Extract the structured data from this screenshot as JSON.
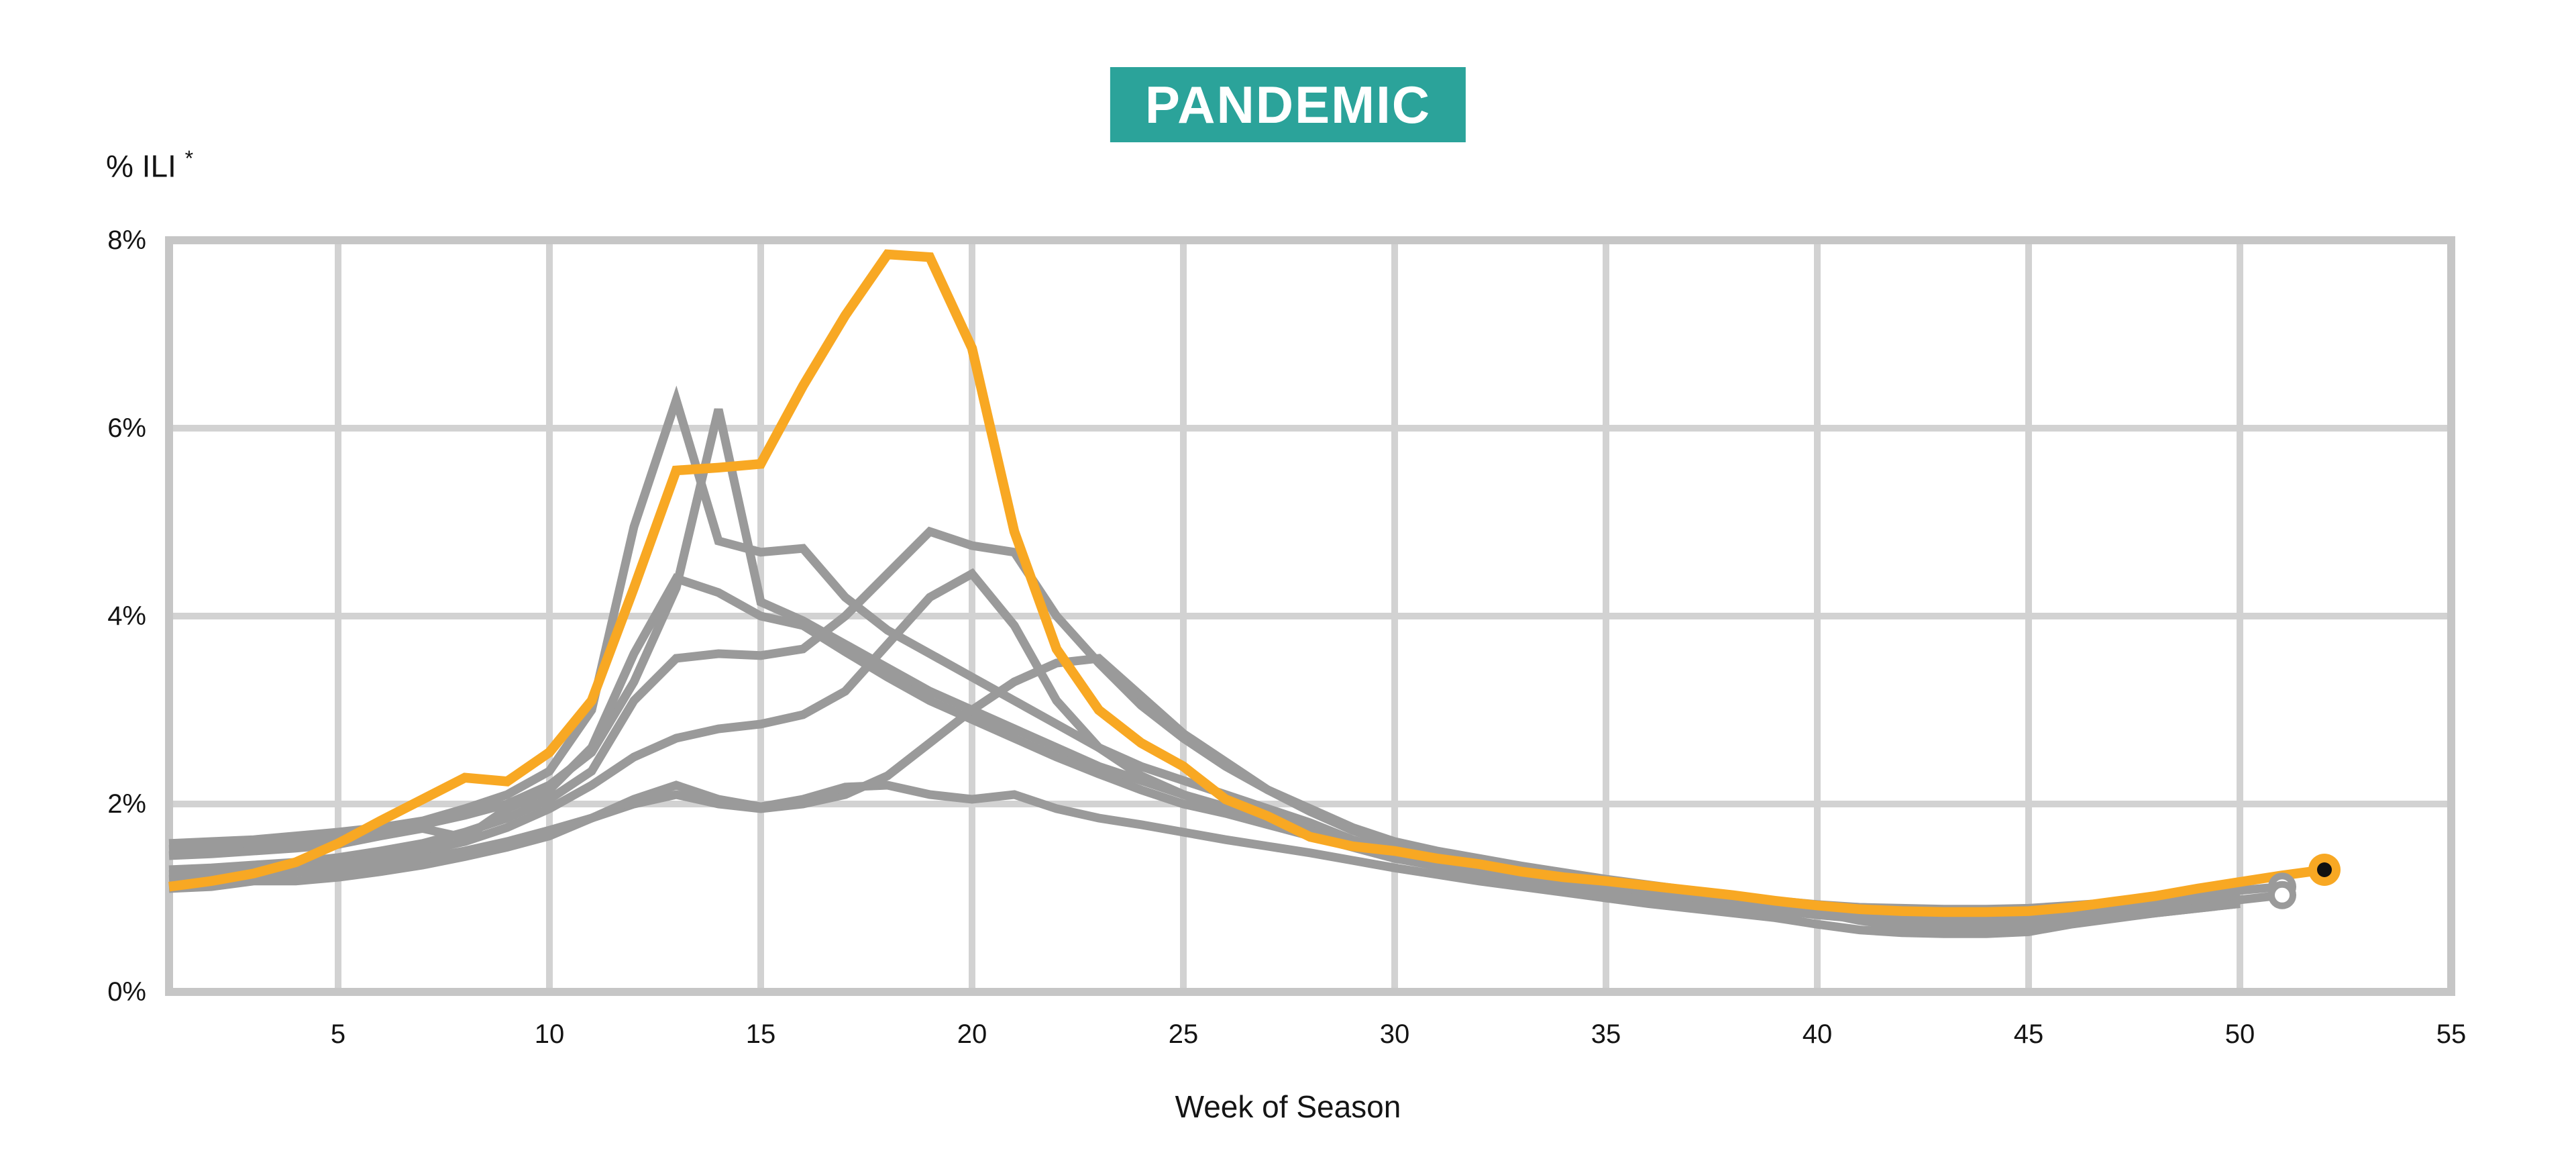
{
  "badge": {
    "label": "PANDEMIC",
    "bg_color": "#2BA39A",
    "text_color": "#ffffff"
  },
  "y_axis": {
    "label": "% ILI",
    "label_suffix": "*",
    "ticks": [
      {
        "value": 0,
        "label": "0%"
      },
      {
        "value": 2,
        "label": "2%"
      },
      {
        "value": 4,
        "label": "4%"
      },
      {
        "value": 6,
        "label": "6%"
      },
      {
        "value": 8,
        "label": "8%"
      }
    ]
  },
  "x_axis": {
    "label": "Week of Season",
    "ticks": [
      {
        "value": 5,
        "label": "5"
      },
      {
        "value": 10,
        "label": "10"
      },
      {
        "value": 15,
        "label": "15"
      },
      {
        "value": 20,
        "label": "20"
      },
      {
        "value": 25,
        "label": "25"
      },
      {
        "value": 30,
        "label": "30"
      },
      {
        "value": 35,
        "label": "35"
      },
      {
        "value": 40,
        "label": "40"
      },
      {
        "value": 45,
        "label": "45"
      },
      {
        "value": 50,
        "label": "50"
      },
      {
        "value": 55,
        "label": "55"
      }
    ]
  },
  "colors": {
    "highlight": "#F8A823",
    "past_season": "#9A9A9A",
    "grid": "#D2D2D2",
    "frame": "#C6C6C6",
    "marker_core": "#111111",
    "text": "#141414"
  },
  "chart_data": {
    "type": "line",
    "title": "PANDEMIC",
    "xlabel": "Week of Season",
    "ylabel": "% ILI *",
    "xlim": [
      1,
      55
    ],
    "ylim": [
      0,
      8
    ],
    "grid": true,
    "legend": "none",
    "series": [
      {
        "name": "past-season-1",
        "role": "past-season",
        "start_week": 1,
        "end_marker": "open-circle",
        "values": [
          1.58,
          1.6,
          1.62,
          1.66,
          1.7,
          1.75,
          1.82,
          1.95,
          2.1,
          2.35,
          3.0,
          4.95,
          6.3,
          4.8,
          4.68,
          4.72,
          4.2,
          3.85,
          3.6,
          3.35,
          3.1,
          2.85,
          2.6,
          2.4,
          2.25,
          2.1,
          1.95,
          1.8,
          1.62,
          1.48,
          1.4,
          1.33,
          1.27,
          1.21,
          1.15,
          1.1,
          1.05,
          1.0,
          0.96,
          0.92,
          0.9,
          0.89,
          0.88,
          0.88,
          0.89,
          0.92,
          0.95,
          1.0,
          1.04,
          1.08,
          1.12
        ]
      },
      {
        "name": "past-season-2",
        "role": "past-season",
        "start_week": 1,
        "end_marker": null,
        "values": [
          1.52,
          1.54,
          1.57,
          1.6,
          1.64,
          1.7,
          1.78,
          1.88,
          2.0,
          2.2,
          2.55,
          3.3,
          4.3,
          6.2,
          4.15,
          3.95,
          3.7,
          3.45,
          3.2,
          3.0,
          2.8,
          2.6,
          2.4,
          2.25,
          2.1,
          1.97,
          1.85,
          1.72,
          1.58,
          1.44,
          1.36,
          1.3,
          1.24,
          1.18,
          1.12,
          1.07,
          1.02,
          0.98,
          0.94,
          0.9,
          0.88,
          0.87,
          0.86,
          0.86,
          0.87,
          0.89,
          0.92,
          0.95,
          0.99,
          1.03
        ]
      },
      {
        "name": "past-season-3",
        "role": "past-season",
        "start_week": 1,
        "end_marker": null,
        "values": [
          1.45,
          1.47,
          1.5,
          1.53,
          1.57,
          1.66,
          1.74,
          1.64,
          1.95,
          2.15,
          2.6,
          3.6,
          4.4,
          4.25,
          4.0,
          3.9,
          3.62,
          3.35,
          3.1,
          2.9,
          2.7,
          2.5,
          2.32,
          2.15,
          2.0,
          1.9,
          1.78,
          1.66,
          1.54,
          1.42,
          1.34,
          1.27,
          1.2,
          1.14,
          1.08,
          1.03,
          0.98,
          0.93,
          0.88,
          0.84,
          0.8,
          0.78,
          0.77,
          0.77,
          0.78,
          0.81,
          0.85,
          0.89,
          0.93,
          0.97
        ]
      },
      {
        "name": "past-season-4",
        "role": "past-season",
        "start_week": 1,
        "end_marker": null,
        "values": [
          1.3,
          1.32,
          1.35,
          1.38,
          1.43,
          1.5,
          1.58,
          1.7,
          1.85,
          2.05,
          2.35,
          3.1,
          3.55,
          3.6,
          3.58,
          3.65,
          4.0,
          4.45,
          4.9,
          4.75,
          4.68,
          4.0,
          3.5,
          3.05,
          2.7,
          2.4,
          2.15,
          1.95,
          1.75,
          1.6,
          1.5,
          1.42,
          1.34,
          1.27,
          1.2,
          1.14,
          1.08,
          1.02,
          0.97,
          0.93,
          0.9,
          0.88,
          0.87,
          0.87,
          0.88,
          0.9,
          0.93,
          0.96,
          0.99,
          1.02
        ]
      },
      {
        "name": "past-season-5",
        "role": "past-season",
        "start_week": 1,
        "end_marker": "open-circle",
        "values": [
          1.25,
          1.27,
          1.3,
          1.33,
          1.37,
          1.43,
          1.5,
          1.6,
          1.75,
          1.95,
          2.2,
          2.5,
          2.7,
          2.8,
          2.85,
          2.95,
          3.2,
          3.7,
          4.2,
          4.45,
          3.9,
          3.1,
          2.6,
          2.3,
          2.1,
          1.95,
          1.8,
          1.68,
          1.56,
          1.45,
          1.36,
          1.28,
          1.21,
          1.14,
          1.08,
          1.02,
          0.97,
          0.92,
          0.87,
          0.82,
          0.78,
          0.76,
          0.75,
          0.75,
          0.77,
          0.8,
          0.84,
          0.88,
          0.93,
          0.98,
          1.03
        ]
      },
      {
        "name": "past-season-6",
        "role": "past-season",
        "start_week": 1,
        "end_marker": null,
        "values": [
          1.2,
          1.22,
          1.24,
          1.27,
          1.31,
          1.36,
          1.42,
          1.5,
          1.6,
          1.72,
          1.85,
          2.0,
          2.1,
          2.0,
          1.95,
          2.0,
          2.1,
          2.3,
          2.65,
          3.0,
          3.3,
          3.5,
          3.55,
          3.15,
          2.75,
          2.45,
          2.15,
          1.92,
          1.72,
          1.56,
          1.45,
          1.36,
          1.28,
          1.2,
          1.13,
          1.07,
          1.01,
          0.95,
          0.9,
          0.85,
          0.76,
          0.7,
          0.68,
          0.67,
          0.69,
          0.74,
          0.79,
          0.84,
          0.89,
          0.94
        ]
      },
      {
        "name": "past-season-7",
        "role": "past-season",
        "start_week": 1,
        "end_marker": null,
        "values": [
          1.1,
          1.12,
          1.18,
          1.18,
          1.22,
          1.28,
          1.35,
          1.44,
          1.54,
          1.66,
          1.85,
          2.05,
          2.2,
          2.05,
          1.97,
          2.05,
          2.18,
          2.2,
          2.1,
          2.05,
          2.1,
          1.95,
          1.85,
          1.78,
          1.7,
          1.62,
          1.55,
          1.48,
          1.4,
          1.32,
          1.25,
          1.18,
          1.12,
          1.06,
          1.0,
          0.94,
          0.89,
          0.84,
          0.79,
          0.72,
          0.66,
          0.63,
          0.62,
          0.62,
          0.64,
          0.72,
          0.78,
          0.84,
          0.89,
          0.94
        ]
      },
      {
        "name": "pandemic-season",
        "role": "pandemic",
        "start_week": 1,
        "end_marker": "filled-dot",
        "values": [
          1.12,
          1.18,
          1.26,
          1.38,
          1.58,
          1.82,
          2.05,
          2.28,
          2.24,
          2.55,
          3.1,
          4.3,
          5.55,
          5.58,
          5.62,
          6.45,
          7.2,
          7.85,
          7.82,
          6.85,
          4.9,
          3.65,
          3.0,
          2.65,
          2.4,
          2.05,
          1.87,
          1.65,
          1.55,
          1.5,
          1.42,
          1.36,
          1.28,
          1.22,
          1.18,
          1.13,
          1.08,
          1.03,
          0.97,
          0.92,
          0.88,
          0.86,
          0.85,
          0.85,
          0.86,
          0.9,
          0.96,
          1.02,
          1.1,
          1.17,
          1.24,
          1.3
        ]
      }
    ]
  }
}
